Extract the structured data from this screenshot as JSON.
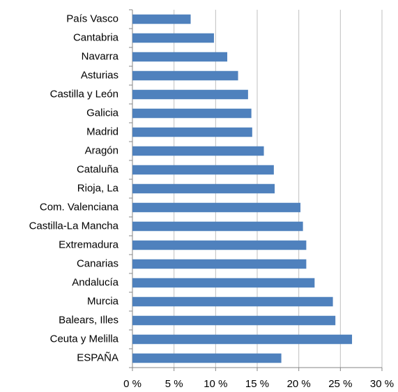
{
  "chart_data": {
    "type": "bar",
    "orientation": "horizontal",
    "categories": [
      "País Vasco",
      "Cantabria",
      "Navarra",
      "Asturias",
      "Castilla y León",
      "Galicia",
      "Madrid",
      "Aragón",
      "Cataluña",
      "Rioja, La",
      "Com. Valenciana",
      "Castilla-La Mancha",
      "Extremadura",
      "Canarias",
      "Andalucía",
      "Murcia",
      "Balears, Illes",
      "Ceuta y Melilla",
      "ESPAÑA"
    ],
    "values": [
      7.0,
      9.8,
      11.4,
      12.7,
      13.9,
      14.3,
      14.4,
      15.8,
      17.0,
      17.1,
      20.2,
      20.5,
      20.9,
      20.9,
      21.9,
      24.1,
      24.4,
      26.4,
      17.9
    ],
    "color": "#4f81bd",
    "xlim": [
      0,
      30
    ],
    "xticks": [
      {
        "value": 0,
        "label": "0 %"
      },
      {
        "value": 5,
        "label": "5 %"
      },
      {
        "value": 10,
        "label": "10 %"
      },
      {
        "value": 15,
        "label": "15 %"
      },
      {
        "value": 20,
        "label": "20 %"
      },
      {
        "value": 25,
        "label": "25 %"
      },
      {
        "value": 30,
        "label": "30 %"
      }
    ],
    "grid": true
  }
}
